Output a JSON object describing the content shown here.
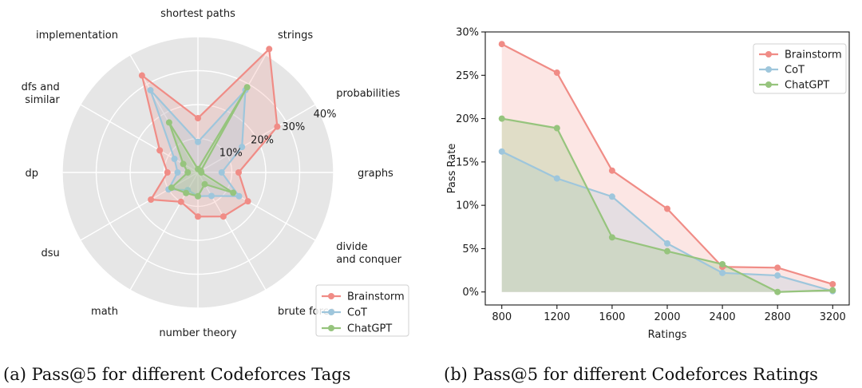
{
  "chart_data": [
    {
      "type": "radar",
      "title": "(a) Pass@5 for different Codeforces Tags",
      "categories": [
        "shortest paths",
        "strings",
        "probabilities",
        "graphs",
        "divide and conquer",
        "brute force",
        "number theory",
        "math",
        "dsu",
        "dp",
        "dfs and similar",
        "implementation"
      ],
      "category_lines": [
        [
          "shortest paths"
        ],
        [
          "strings"
        ],
        [
          "probabilities"
        ],
        [
          "graphs"
        ],
        [
          "divide",
          "and conquer"
        ],
        [
          "brute force"
        ],
        [
          "number theory"
        ],
        [
          "math"
        ],
        [
          "dsu"
        ],
        [
          "dp"
        ],
        [
          "dfs and",
          "similar"
        ],
        [
          "implementation"
        ]
      ],
      "radial_ticks": [
        10,
        20,
        30,
        40
      ],
      "radial_tick_labels": [
        "10%",
        "20%",
        "30%",
        "40%"
      ],
      "rmax": 40,
      "series": [
        {
          "name": "Brainstorm",
          "color": "#F08C86",
          "fill": "rgba(240,140,134,0.22)",
          "values": [
            16,
            42,
            27,
            12,
            17,
            15,
            13,
            10,
            16,
            9,
            13,
            33
          ]
        },
        {
          "name": "CoT",
          "color": "#9EC6DC",
          "fill": "rgba(158,198,220,0.25)",
          "values": [
            9,
            28,
            15,
            7,
            14,
            8,
            7,
            6,
            10,
            6,
            8,
            28
          ]
        },
        {
          "name": "ChatGPT",
          "color": "#96C47D",
          "fill": "rgba(150,196,125,0.28)",
          "values": [
            1,
            29,
            1,
            1,
            12,
            4,
            7,
            7,
            9,
            3,
            5,
            17
          ]
        }
      ],
      "legend": {
        "position": "lower-right",
        "entries": [
          "Brainstorm",
          "CoT",
          "ChatGPT"
        ]
      }
    },
    {
      "type": "line",
      "title": "(b) Pass@5 for different Codeforces Ratings",
      "xlabel": "Ratings",
      "ylabel": "Pass Rate",
      "x": [
        800,
        1200,
        1600,
        2000,
        2400,
        2800,
        3200
      ],
      "x_tick_labels": [
        "800",
        "1200",
        "1600",
        "2000",
        "2400",
        "2800",
        "3200"
      ],
      "xlim": [
        680,
        3320
      ],
      "ylim": [
        -1.5,
        30
      ],
      "y_ticks": [
        0,
        5,
        10,
        15,
        20,
        25,
        30
      ],
      "y_tick_labels": [
        "0%",
        "5%",
        "10%",
        "15%",
        "20%",
        "25%",
        "30%"
      ],
      "series": [
        {
          "name": "Brainstorm",
          "color": "#F08C86",
          "fill": "rgba(240,140,134,0.22)",
          "values": [
            28.6,
            25.3,
            14.0,
            9.6,
            2.9,
            2.8,
            0.9
          ]
        },
        {
          "name": "CoT",
          "color": "#9EC6DC",
          "fill": "rgba(158,198,220,0.25)",
          "values": [
            16.2,
            13.1,
            11.0,
            5.6,
            2.2,
            1.9,
            0.1
          ]
        },
        {
          "name": "ChatGPT",
          "color": "#96C47D",
          "fill": "rgba(150,196,125,0.28)",
          "values": [
            20.0,
            18.9,
            6.3,
            4.7,
            3.2,
            0.0,
            0.2
          ]
        }
      ],
      "legend": {
        "position": "top-right",
        "entries": [
          "Brainstorm",
          "CoT",
          "ChatGPT"
        ]
      }
    }
  ]
}
